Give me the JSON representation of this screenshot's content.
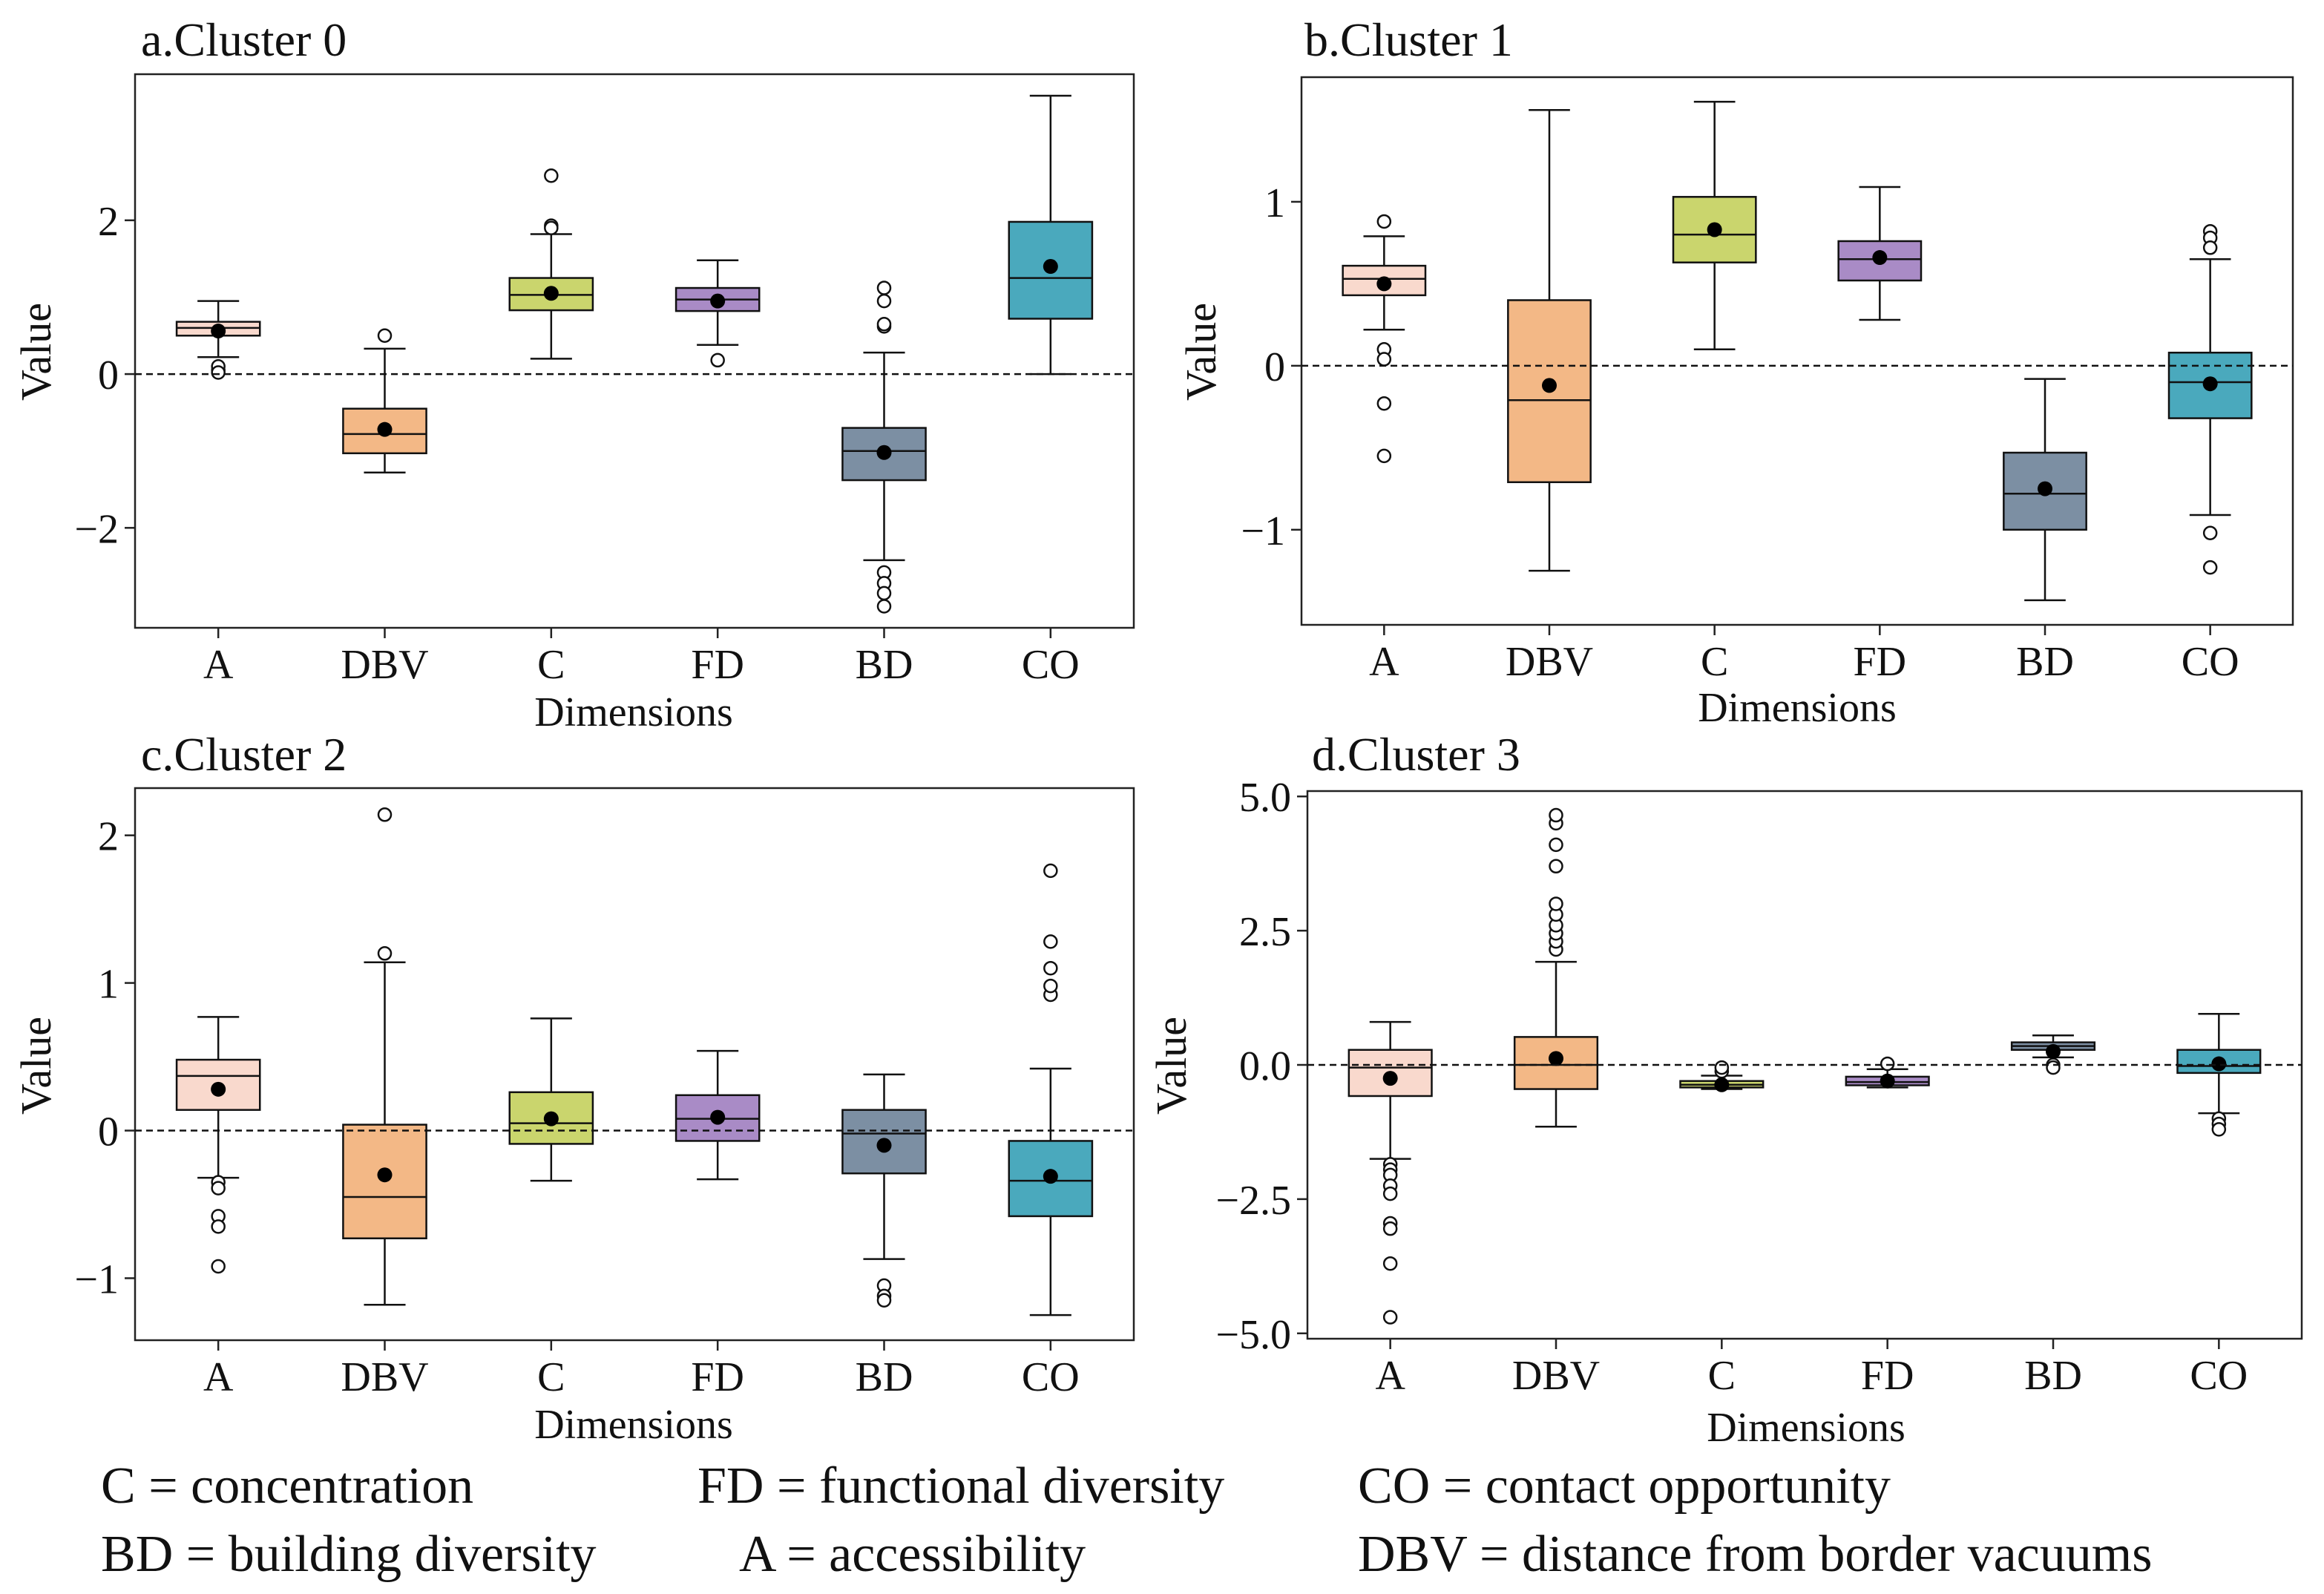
{
  "figure": {
    "legend": {
      "c": "C = concentration",
      "fd": "FD = functional diversity",
      "co": "CO = contact opportunity",
      "bd": "BD = building diversity",
      "a": "A = accessibility",
      "dbv": "DBV = distance from border vacuums"
    }
  },
  "chart_data": [
    {
      "type": "boxplot",
      "title": "a.Cluster 0",
      "xlabel": "Dimensions",
      "ylabel": "Value",
      "ylim": [
        -3.3,
        3.9
      ],
      "yticks": [
        -2,
        0,
        2
      ],
      "ytick_labels": [
        "−2",
        "0",
        "2"
      ],
      "reference_line": 0,
      "categories": [
        "A",
        "DBV",
        "C",
        "FD",
        "BD",
        "CO"
      ],
      "colors": [
        "#f9d9cd",
        "#f3b886",
        "#cad56d",
        "#a98bc6",
        "#7c8fa3",
        "#4aa9bd"
      ],
      "boxes": [
        {
          "whislo": 0.22,
          "q1": 0.5,
          "med": 0.6,
          "q3": 0.68,
          "whishi": 0.95,
          "mean": 0.56,
          "fliers": [
            0.05,
            0.1,
            0.02
          ]
        },
        {
          "whislo": -1.28,
          "q1": -1.03,
          "med": -0.78,
          "q3": -0.45,
          "whishi": 0.33,
          "mean": -0.72,
          "fliers": [
            0.5
          ]
        },
        {
          "whislo": 0.2,
          "q1": 0.83,
          "med": 1.03,
          "q3": 1.25,
          "whishi": 1.82,
          "mean": 1.05,
          "fliers": [
            1.93,
            1.9,
            2.58
          ]
        },
        {
          "whislo": 0.38,
          "q1": 0.82,
          "med": 0.97,
          "q3": 1.12,
          "whishi": 1.48,
          "mean": 0.95,
          "fliers": [
            0.18
          ]
        },
        {
          "whislo": -2.42,
          "q1": -1.38,
          "med": -1.0,
          "q3": -0.7,
          "whishi": 0.28,
          "mean": -1.02,
          "fliers": [
            -2.58,
            -2.72,
            -2.85,
            -3.02,
            0.62,
            0.65,
            0.95,
            1.12
          ]
        },
        {
          "whislo": 0.0,
          "q1": 0.72,
          "med": 1.25,
          "q3": 1.98,
          "whishi": 3.62,
          "mean": 1.4,
          "fliers": []
        }
      ]
    },
    {
      "type": "boxplot",
      "title": "b.Cluster 1",
      "xlabel": "Dimensions",
      "ylabel": "Value",
      "ylim": [
        -1.58,
        1.76
      ],
      "yticks": [
        -1,
        0,
        1
      ],
      "ytick_labels": [
        "−1",
        "0",
        "1"
      ],
      "reference_line": 0,
      "categories": [
        "A",
        "DBV",
        "C",
        "FD",
        "BD",
        "CO"
      ],
      "colors": [
        "#f9d9cd",
        "#f3b886",
        "#cad56d",
        "#a98bc6",
        "#7c8fa3",
        "#4aa9bd"
      ],
      "boxes": [
        {
          "whislo": 0.22,
          "q1": 0.43,
          "med": 0.53,
          "q3": 0.61,
          "whishi": 0.79,
          "mean": 0.5,
          "fliers": [
            0.88,
            0.1,
            0.04,
            -0.23,
            -0.55
          ]
        },
        {
          "whislo": -1.25,
          "q1": -0.71,
          "med": -0.21,
          "q3": 0.4,
          "whishi": 1.56,
          "mean": -0.12,
          "fliers": []
        },
        {
          "whislo": 0.1,
          "q1": 0.63,
          "med": 0.8,
          "q3": 1.03,
          "whishi": 1.61,
          "mean": 0.83,
          "fliers": []
        },
        {
          "whislo": 0.28,
          "q1": 0.52,
          "med": 0.65,
          "q3": 0.76,
          "whishi": 1.09,
          "mean": 0.66,
          "fliers": []
        },
        {
          "whislo": -1.43,
          "q1": -1.0,
          "med": -0.78,
          "q3": -0.53,
          "whishi": -0.08,
          "mean": -0.75,
          "fliers": []
        },
        {
          "whislo": -0.91,
          "q1": -0.32,
          "med": -0.1,
          "q3": 0.08,
          "whishi": 0.65,
          "mean": -0.11,
          "fliers": [
            0.82,
            0.78,
            0.72,
            -1.02,
            -1.23
          ]
        }
      ]
    },
    {
      "type": "boxplot",
      "title": "c.Cluster 2",
      "xlabel": "Dimensions",
      "ylabel": "Value",
      "ylim": [
        -1.42,
        2.32
      ],
      "yticks": [
        -1,
        0,
        1,
        2
      ],
      "ytick_labels": [
        "−1",
        "0",
        "1",
        "2"
      ],
      "reference_line": 0,
      "categories": [
        "A",
        "DBV",
        "C",
        "FD",
        "BD",
        "CO"
      ],
      "colors": [
        "#f9d9cd",
        "#f3b886",
        "#cad56d",
        "#a98bc6",
        "#7c8fa3",
        "#4aa9bd"
      ],
      "boxes": [
        {
          "whislo": -0.32,
          "q1": 0.14,
          "med": 0.37,
          "q3": 0.48,
          "whishi": 0.77,
          "mean": 0.28,
          "fliers": [
            -0.35,
            -0.39,
            -0.58,
            -0.65,
            -0.92
          ]
        },
        {
          "whislo": -1.18,
          "q1": -0.73,
          "med": -0.45,
          "q3": 0.04,
          "whishi": 1.14,
          "mean": -0.3,
          "fliers": [
            1.2,
            2.14
          ]
        },
        {
          "whislo": -0.34,
          "q1": -0.09,
          "med": 0.05,
          "q3": 0.26,
          "whishi": 0.76,
          "mean": 0.08,
          "fliers": []
        },
        {
          "whislo": -0.33,
          "q1": -0.07,
          "med": 0.08,
          "q3": 0.24,
          "whishi": 0.54,
          "mean": 0.09,
          "fliers": []
        },
        {
          "whislo": -0.87,
          "q1": -0.29,
          "med": -0.02,
          "q3": 0.14,
          "whishi": 0.38,
          "mean": -0.1,
          "fliers": [
            -1.05,
            -1.12,
            -1.15
          ]
        },
        {
          "whislo": -1.25,
          "q1": -0.58,
          "med": -0.34,
          "q3": -0.07,
          "whishi": 0.42,
          "mean": -0.31,
          "fliers": [
            0.92,
            0.98,
            1.1,
            1.28,
            1.76
          ]
        }
      ]
    },
    {
      "type": "boxplot",
      "title": "d.Cluster 3",
      "xlabel": "Dimensions",
      "ylabel": "Value",
      "ylim": [
        -5.1,
        5.1
      ],
      "yticks": [
        -5.0,
        -2.5,
        0.0,
        2.5,
        5.0
      ],
      "ytick_labels": [
        "−5.0",
        "−2.5",
        "0.0",
        "2.5",
        "5.0"
      ],
      "reference_line": 0,
      "categories": [
        "A",
        "DBV",
        "C",
        "FD",
        "BD",
        "CO"
      ],
      "colors": [
        "#f9d9cd",
        "#f3b886",
        "#cad56d",
        "#a98bc6",
        "#7c8fa3",
        "#4aa9bd"
      ],
      "boxes": [
        {
          "whislo": -1.75,
          "q1": -0.58,
          "med": -0.05,
          "q3": 0.28,
          "whishi": 0.8,
          "mean": -0.25,
          "fliers": [
            -1.85,
            -1.95,
            -2.05,
            -2.25,
            -2.4,
            -2.95,
            -3.05,
            -3.7,
            -4.7
          ]
        },
        {
          "whislo": -1.15,
          "q1": -0.45,
          "med": 0.0,
          "q3": 0.52,
          "whishi": 1.92,
          "mean": 0.12,
          "fliers": [
            2.15,
            2.3,
            2.45,
            2.6,
            2.8,
            3.0,
            3.7,
            4.1,
            4.5,
            4.65
          ]
        },
        {
          "whislo": -0.45,
          "q1": -0.42,
          "med": -0.37,
          "q3": -0.3,
          "whishi": -0.2,
          "mean": -0.37,
          "fliers": [
            -0.12,
            -0.05
          ]
        },
        {
          "whislo": -0.42,
          "q1": -0.38,
          "med": -0.32,
          "q3": -0.22,
          "whishi": -0.08,
          "mean": -0.3,
          "fliers": [
            0.02
          ]
        },
        {
          "whislo": 0.14,
          "q1": 0.28,
          "med": 0.35,
          "q3": 0.42,
          "whishi": 0.55,
          "mean": 0.25,
          "fliers": [
            0.0,
            -0.05
          ]
        },
        {
          "whislo": -0.9,
          "q1": -0.15,
          "med": -0.02,
          "q3": 0.28,
          "whishi": 0.95,
          "mean": 0.02,
          "fliers": [
            -1.0,
            -1.1,
            -1.2
          ]
        }
      ]
    }
  ]
}
